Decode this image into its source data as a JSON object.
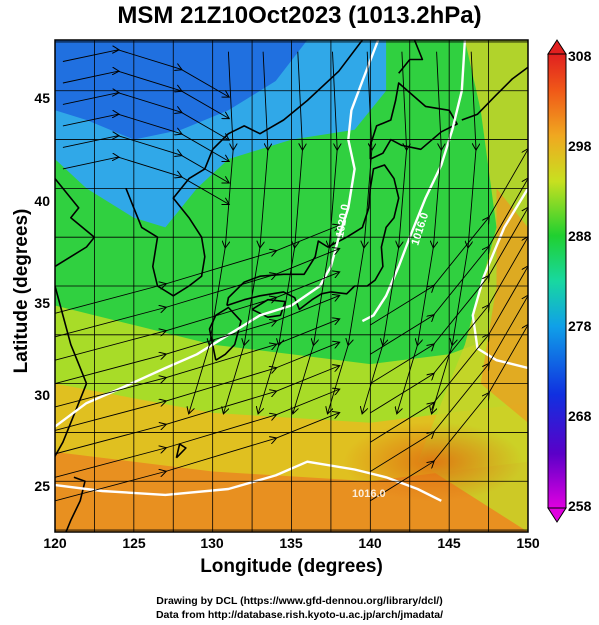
{
  "title": "MSM 21Z10Oct2023 (1013.2hPa)",
  "x_axis": {
    "label": "Longitude (degrees)",
    "ticks": [
      "120",
      "125",
      "130",
      "135",
      "140",
      "145",
      "150"
    ]
  },
  "y_axis": {
    "label": "Latitude  (degrees)",
    "ticks": [
      "45",
      "40",
      "35",
      "30",
      "25"
    ]
  },
  "colorbar": {
    "min": 258,
    "max": 308,
    "ticks": [
      "308",
      "298",
      "288",
      "278",
      "268",
      "258"
    ]
  },
  "contour_labels": [
    "1020.0",
    "1016.0",
    "1016.0"
  ],
  "credits": [
    "Drawing by DCL (https://www.gfd-dennou.org/library/dcl/)",
    "Data from http://database.rish.kyoto-u.ac.jp/arch/jmadata/"
  ],
  "chart_data": {
    "type": "heatmap",
    "title": "MSM 21Z10Oct2023 (1013.2hPa)",
    "xlabel": "Longitude (degrees)",
    "ylabel": "Latitude  (degrees)",
    "xlim": [
      120,
      150
    ],
    "ylim": [
      22.4,
      47.6
    ],
    "color_range": [
      258,
      308
    ],
    "colors": {
      "cold": "#1f6fe0",
      "mid": "#2ccf3c",
      "warm": "#e07a1a",
      "contour": "#ffffff",
      "land": "#000000"
    }
  }
}
